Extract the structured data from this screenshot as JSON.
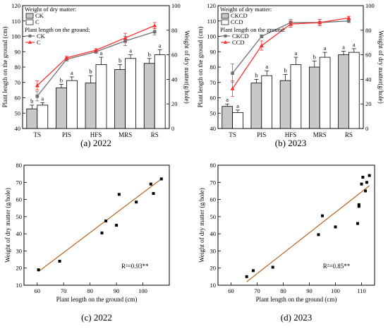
{
  "chart_data": [
    {
      "type": "bar+line",
      "caption": "(a) 2022",
      "categories": [
        "TS",
        "PIS",
        "HFS",
        "MRS",
        "RS"
      ],
      "ylabel_left": "Plant length on the ground (cm)",
      "ylabel_right": "Weight of dry matter(g/hole)",
      "ylim_left": [
        40,
        120
      ],
      "ylim_right": [
        0,
        100
      ],
      "yticks_left": [
        40,
        50,
        60,
        70,
        80,
        90,
        100,
        110,
        120
      ],
      "yticks_right": [
        0,
        20,
        40,
        60,
        80,
        100
      ],
      "legend_bar_title": "Weight of dry matter:",
      "legend_line_title": "Plant length on the ground:",
      "bar_series": [
        {
          "name": "CK",
          "color": "#c8c8c8",
          "values": [
            16,
            33,
            37,
            48,
            53
          ],
          "errors": [
            3,
            3,
            6,
            4,
            4
          ],
          "labels": [
            "b",
            "b",
            "b",
            "b",
            "b"
          ]
        },
        {
          "name": "C",
          "color": "#ffffff",
          "values": [
            19,
            39,
            52,
            57,
            60
          ],
          "errors": [
            2,
            3,
            6,
            3,
            4
          ],
          "labels": [
            "a",
            "a",
            "a",
            "a",
            "a"
          ]
        }
      ],
      "line_series": [
        {
          "name": "CK",
          "color": "#707070",
          "marker": "square",
          "values": [
            61,
            85,
            90,
            97,
            103
          ]
        },
        {
          "name": "C",
          "color": "#ff2e2e",
          "marker": "triangle",
          "values": [
            68,
            86,
            91,
            99,
            107
          ]
        }
      ],
      "line_errors": [
        [
          3,
          1,
          1,
          3,
          2
        ],
        [
          3,
          1,
          1,
          3,
          2
        ]
      ]
    },
    {
      "type": "bar+line",
      "caption": "(b) 2023",
      "categories": [
        "TS",
        "PIS",
        "HFS",
        "MRS",
        "RS"
      ],
      "ylabel_left": "Plant length on the ground (cm)",
      "ylabel_right": "Weight of dry matter(g/hole)",
      "ylim_left": [
        40,
        120
      ],
      "ylim_right": [
        0,
        100
      ],
      "yticks_left": [
        40,
        50,
        60,
        70,
        80,
        90,
        100,
        110,
        120
      ],
      "yticks_right": [
        0,
        20,
        40,
        60,
        80,
        100
      ],
      "legend_bar_title": "Weight of dry matter:",
      "legend_line_title": "Plant length on the ground:",
      "bar_series": [
        {
          "name": "CKCD",
          "color": "#c8c8c8",
          "values": [
            18,
            37,
            39,
            50,
            60
          ],
          "errors": [
            2,
            3,
            5,
            5,
            3
          ],
          "labels": [
            "a",
            "b",
            "b",
            "b",
            "a"
          ]
        },
        {
          "name": "CCD",
          "color": "#ffffff",
          "values": [
            13,
            43,
            52,
            58,
            62
          ],
          "errors": [
            2,
            4,
            6,
            4,
            3
          ],
          "labels": [
            "a",
            "a",
            "a",
            "a",
            "a"
          ]
        }
      ],
      "line_series": [
        {
          "name": "CKCD",
          "color": "#707070",
          "marker": "square",
          "values": [
            76,
            100,
            109,
            109,
            110
          ]
        },
        {
          "name": "CCD",
          "color": "#ff2e2e",
          "marker": "triangle",
          "values": [
            66,
            94,
            108,
            109,
            112
          ]
        }
      ],
      "line_errors": [
        [
          6,
          1,
          2,
          2,
          1
        ],
        [
          5,
          3,
          2,
          2,
          1
        ]
      ]
    },
    {
      "type": "scatter",
      "caption": "(c) 2022",
      "xlabel": "Plant length on the ground (cm)",
      "ylabel": "Weight of dry matter (g/hole)",
      "xlim": [
        55,
        110
      ],
      "ylim": [
        10,
        80
      ],
      "xticks": [
        60,
        70,
        80,
        90,
        100
      ],
      "yticks": [
        10,
        20,
        30,
        40,
        50,
        60,
        70,
        80
      ],
      "points": [
        [
          60.5,
          19
        ],
        [
          68.5,
          24
        ],
        [
          84.5,
          40.5
        ],
        [
          86,
          47.5
        ],
        [
          90,
          45
        ],
        [
          91,
          63
        ],
        [
          97.5,
          58.5
        ],
        [
          103,
          69
        ],
        [
          104,
          63.5
        ],
        [
          107,
          72
        ]
      ],
      "fit": [
        [
          60.5,
          18
        ],
        [
          107,
          72
        ]
      ],
      "fit_color": "#b5651d",
      "annotation": "R²=0.93**"
    },
    {
      "type": "scatter",
      "caption": "(d) 2023",
      "xlabel": "Plant length on the ground (cm)",
      "ylabel": "Weight of dry matter (g/hole)",
      "xlim": [
        55,
        115
      ],
      "ylim": [
        10,
        80
      ],
      "xticks": [
        60,
        70,
        80,
        90,
        100,
        110
      ],
      "yticks": [
        10,
        20,
        30,
        40,
        50,
        60,
        70,
        80
      ],
      "points": [
        [
          66,
          15
        ],
        [
          68.5,
          18.5
        ],
        [
          76,
          20.5
        ],
        [
          93.5,
          39.5
        ],
        [
          95,
          50.5
        ],
        [
          100,
          44
        ],
        [
          108.5,
          46
        ],
        [
          109,
          56
        ],
        [
          109,
          57
        ],
        [
          110,
          69
        ],
        [
          110.5,
          73
        ],
        [
          111.5,
          65
        ],
        [
          112,
          70
        ],
        [
          113,
          74
        ]
      ],
      "fit": [
        [
          66,
          12
        ],
        [
          113,
          68
        ]
      ],
      "fit_color": "#b5651d",
      "annotation": "R²=0.85**"
    }
  ]
}
